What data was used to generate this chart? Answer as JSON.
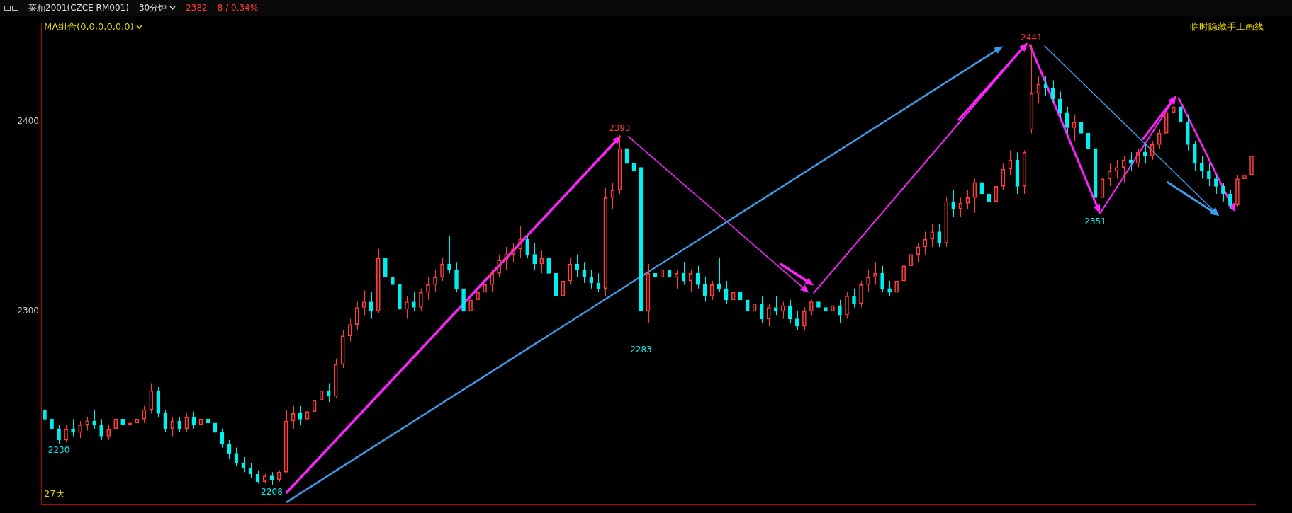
{
  "chart_data": {
    "type": "candlestick",
    "title": "菜粕2001(CZCE RM001)",
    "subtitle": "30分钟",
    "ohlc": [
      [
        2248,
        2252,
        2240,
        2243
      ],
      [
        2243,
        2246,
        2236,
        2238
      ],
      [
        2238,
        2240,
        2230,
        2232
      ],
      [
        2232,
        2240,
        2231,
        2238
      ],
      [
        2238,
        2243,
        2234,
        2236
      ],
      [
        2236,
        2242,
        2233,
        2240
      ],
      [
        2240,
        2244,
        2237,
        2242
      ],
      [
        2242,
        2248,
        2238,
        2240
      ],
      [
        2240,
        2243,
        2232,
        2234
      ],
      [
        2234,
        2240,
        2232,
        2238
      ],
      [
        2238,
        2244,
        2236,
        2243
      ],
      [
        2243,
        2245,
        2238,
        2240
      ],
      [
        2240,
        2244,
        2236,
        2241
      ],
      [
        2241,
        2246,
        2238,
        2243
      ],
      [
        2243,
        2250,
        2241,
        2248
      ],
      [
        2248,
        2262,
        2246,
        2258
      ],
      [
        2258,
        2260,
        2244,
        2246
      ],
      [
        2246,
        2248,
        2236,
        2238
      ],
      [
        2238,
        2244,
        2234,
        2242
      ],
      [
        2242,
        2244,
        2236,
        2238
      ],
      [
        2238,
        2246,
        2236,
        2244
      ],
      [
        2244,
        2247,
        2238,
        2240
      ],
      [
        2240,
        2245,
        2238,
        2243
      ],
      [
        2243,
        2244,
        2238,
        2241
      ],
      [
        2241,
        2244,
        2234,
        2236
      ],
      [
        2236,
        2238,
        2228,
        2230
      ],
      [
        2230,
        2232,
        2222,
        2225
      ],
      [
        2225,
        2228,
        2218,
        2220
      ],
      [
        2220,
        2223,
        2215,
        2217
      ],
      [
        2217,
        2220,
        2212,
        2214
      ],
      [
        2214,
        2216,
        2209,
        2210
      ],
      [
        2210,
        2214,
        2209,
        2213
      ],
      [
        2213,
        2215,
        2208,
        2211
      ],
      [
        2211,
        2216,
        2210,
        2215
      ],
      [
        2215,
        2248,
        2215,
        2242
      ],
      [
        2242,
        2250,
        2238,
        2246
      ],
      [
        2246,
        2250,
        2240,
        2243
      ],
      [
        2243,
        2249,
        2240,
        2247
      ],
      [
        2247,
        2255,
        2245,
        2253
      ],
      [
        2253,
        2262,
        2250,
        2258
      ],
      [
        2258,
        2262,
        2252,
        2255
      ],
      [
        2255,
        2275,
        2254,
        2272
      ],
      [
        2272,
        2290,
        2270,
        2287
      ],
      [
        2287,
        2296,
        2284,
        2293
      ],
      [
        2293,
        2305,
        2290,
        2302
      ],
      [
        2302,
        2311,
        2298,
        2305
      ],
      [
        2305,
        2310,
        2296,
        2300
      ],
      [
        2300,
        2333,
        2299,
        2328
      ],
      [
        2328,
        2330,
        2315,
        2318
      ],
      [
        2318,
        2322,
        2310,
        2314
      ],
      [
        2314,
        2316,
        2298,
        2301
      ],
      [
        2301,
        2308,
        2296,
        2305
      ],
      [
        2305,
        2310,
        2300,
        2302
      ],
      [
        2302,
        2312,
        2300,
        2310
      ],
      [
        2310,
        2318,
        2306,
        2314
      ],
      [
        2314,
        2322,
        2310,
        2318
      ],
      [
        2318,
        2328,
        2316,
        2325
      ],
      [
        2325,
        2340,
        2320,
        2322
      ],
      [
        2322,
        2326,
        2310,
        2312
      ],
      [
        2312,
        2316,
        2288,
        2300
      ],
      [
        2300,
        2308,
        2296,
        2306
      ],
      [
        2306,
        2312,
        2300,
        2310
      ],
      [
        2310,
        2316,
        2306,
        2314
      ],
      [
        2314,
        2322,
        2310,
        2320
      ],
      [
        2320,
        2330,
        2318,
        2327
      ],
      [
        2327,
        2334,
        2322,
        2330
      ],
      [
        2330,
        2336,
        2326,
        2333
      ],
      [
        2333,
        2345,
        2328,
        2338
      ],
      [
        2338,
        2340,
        2328,
        2330
      ],
      [
        2330,
        2336,
        2322,
        2325
      ],
      [
        2325,
        2332,
        2320,
        2328
      ],
      [
        2328,
        2330,
        2318,
        2320
      ],
      [
        2320,
        2324,
        2305,
        2308
      ],
      [
        2308,
        2318,
        2306,
        2316
      ],
      [
        2316,
        2328,
        2314,
        2325
      ],
      [
        2325,
        2330,
        2318,
        2322
      ],
      [
        2322,
        2326,
        2315,
        2318
      ],
      [
        2318,
        2322,
        2312,
        2315
      ],
      [
        2315,
        2320,
        2310,
        2312
      ],
      [
        2312,
        2365,
        2308,
        2360
      ],
      [
        2360,
        2368,
        2354,
        2364
      ],
      [
        2364,
        2393,
        2362,
        2386
      ],
      [
        2386,
        2390,
        2376,
        2378
      ],
      [
        2378,
        2384,
        2370,
        2374
      ],
      [
        2376,
        2382,
        2283,
        2300
      ],
      [
        2300,
        2325,
        2294,
        2320
      ],
      [
        2320,
        2326,
        2312,
        2318
      ],
      [
        2318,
        2324,
        2310,
        2322
      ],
      [
        2322,
        2330,
        2316,
        2318
      ],
      [
        2318,
        2322,
        2312,
        2320
      ],
      [
        2320,
        2326,
        2314,
        2316
      ],
      [
        2316,
        2322,
        2310,
        2320
      ],
      [
        2320,
        2324,
        2312,
        2314
      ],
      [
        2314,
        2318,
        2305,
        2308
      ],
      [
        2308,
        2316,
        2306,
        2314
      ],
      [
        2314,
        2328,
        2310,
        2312
      ],
      [
        2312,
        2316,
        2304,
        2306
      ],
      [
        2306,
        2312,
        2302,
        2310
      ],
      [
        2310,
        2314,
        2304,
        2306
      ],
      [
        2306,
        2310,
        2298,
        2300
      ],
      [
        2300,
        2306,
        2296,
        2304
      ],
      [
        2304,
        2308,
        2294,
        2296
      ],
      [
        2296,
        2304,
        2292,
        2302
      ],
      [
        2302,
        2308,
        2298,
        2300
      ],
      [
        2300,
        2305,
        2296,
        2303
      ],
      [
        2303,
        2306,
        2294,
        2296
      ],
      [
        2296,
        2300,
        2290,
        2292
      ],
      [
        2292,
        2302,
        2290,
        2300
      ],
      [
        2300,
        2306,
        2298,
        2305
      ],
      [
        2305,
        2308,
        2300,
        2302
      ],
      [
        2302,
        2306,
        2298,
        2300
      ],
      [
        2300,
        2305,
        2296,
        2303
      ],
      [
        2303,
        2306,
        2294,
        2298
      ],
      [
        2298,
        2310,
        2296,
        2308
      ],
      [
        2308,
        2312,
        2302,
        2304
      ],
      [
        2304,
        2316,
        2302,
        2314
      ],
      [
        2314,
        2322,
        2310,
        2318
      ],
      [
        2318,
        2326,
        2314,
        2320
      ],
      [
        2320,
        2324,
        2310,
        2312
      ],
      [
        2312,
        2316,
        2308,
        2310
      ],
      [
        2310,
        2318,
        2308,
        2316
      ],
      [
        2316,
        2326,
        2314,
        2324
      ],
      [
        2324,
        2332,
        2320,
        2330
      ],
      [
        2330,
        2336,
        2326,
        2334
      ],
      [
        2334,
        2342,
        2330,
        2338
      ],
      [
        2338,
        2346,
        2334,
        2342
      ],
      [
        2342,
        2346,
        2334,
        2336
      ],
      [
        2336,
        2360,
        2334,
        2358
      ],
      [
        2358,
        2364,
        2350,
        2354
      ],
      [
        2354,
        2360,
        2350,
        2357
      ],
      [
        2357,
        2364,
        2354,
        2360
      ],
      [
        2360,
        2370,
        2352,
        2368
      ],
      [
        2368,
        2372,
        2358,
        2362
      ],
      [
        2362,
        2366,
        2350,
        2358
      ],
      [
        2358,
        2368,
        2356,
        2366
      ],
      [
        2366,
        2378,
        2364,
        2375
      ],
      [
        2375,
        2385,
        2372,
        2380
      ],
      [
        2380,
        2384,
        2362,
        2366
      ],
      [
        2366,
        2385,
        2362,
        2384
      ],
      [
        2396,
        2441,
        2394,
        2415
      ],
      [
        2415,
        2424,
        2410,
        2420
      ],
      [
        2420,
        2424,
        2414,
        2418
      ],
      [
        2418,
        2422,
        2410,
        2412
      ],
      [
        2412,
        2416,
        2402,
        2405
      ],
      [
        2405,
        2408,
        2394,
        2397
      ],
      [
        2397,
        2404,
        2390,
        2400
      ],
      [
        2400,
        2405,
        2392,
        2394
      ],
      [
        2394,
        2398,
        2382,
        2386
      ],
      [
        2386,
        2388,
        2351,
        2360
      ],
      [
        2360,
        2372,
        2358,
        2370
      ],
      [
        2370,
        2378,
        2366,
        2374
      ],
      [
        2374,
        2380,
        2370,
        2376
      ],
      [
        2376,
        2382,
        2368,
        2380
      ],
      [
        2380,
        2384,
        2374,
        2378
      ],
      [
        2378,
        2386,
        2376,
        2384
      ],
      [
        2384,
        2388,
        2378,
        2382
      ],
      [
        2382,
        2390,
        2380,
        2388
      ],
      [
        2388,
        2396,
        2386,
        2394
      ],
      [
        2394,
        2408,
        2392,
        2405
      ],
      [
        2405,
        2413,
        2400,
        2408
      ],
      [
        2408,
        2410,
        2398,
        2400
      ],
      [
        2400,
        2404,
        2385,
        2388
      ],
      [
        2388,
        2390,
        2374,
        2378
      ],
      [
        2378,
        2382,
        2370,
        2374
      ],
      [
        2374,
        2378,
        2366,
        2370
      ],
      [
        2370,
        2372,
        2362,
        2366
      ],
      [
        2366,
        2368,
        2358,
        2362
      ],
      [
        2362,
        2364,
        2354,
        2356
      ],
      [
        2356,
        2372,
        2355,
        2370
      ],
      [
        2370,
        2374,
        2364,
        2372
      ],
      [
        2372,
        2392,
        2370,
        2382
      ]
    ],
    "categories": [
      null,
      null,
      null,
      null,
      null,
      null,
      null,
      null,
      null,
      null,
      null,
      null,
      null,
      null,
      null,
      null,
      null,
      null,
      null,
      null,
      null,
      null,
      null,
      null,
      null,
      null,
      null,
      null,
      null,
      null,
      null,
      null,
      null,
      null,
      null,
      null,
      null,
      null,
      null,
      null,
      null,
      null,
      null,
      null,
      null,
      null,
      null,
      null,
      null,
      null,
      null,
      null,
      null,
      null,
      null,
      null,
      null,
      null,
      null,
      null,
      null,
      null,
      null,
      null,
      null,
      null,
      null,
      null,
      null,
      null,
      null,
      null,
      null,
      null,
      null,
      null,
      null,
      null,
      null,
      null,
      null,
      null,
      null,
      null,
      null,
      null,
      null,
      null,
      null,
      null,
      null,
      null,
      null,
      null,
      null,
      null,
      null,
      null,
      null,
      null,
      null,
      null,
      null,
      null,
      null,
      null,
      null,
      null,
      null,
      null,
      null,
      null,
      null,
      null,
      null,
      null,
      null,
      null,
      null,
      null,
      null,
      null,
      null,
      null,
      null,
      null,
      null,
      null,
      null,
      null,
      null,
      null,
      null,
      null,
      null,
      null,
      null,
      null,
      null,
      null,
      null,
      null,
      null,
      null,
      null,
      null,
      null,
      null,
      null,
      null,
      null,
      null,
      null,
      null,
      null,
      null,
      null,
      null,
      null,
      null,
      null,
      null,
      null,
      null,
      null,
      null,
      null,
      null,
      null,
      null,
      null
    ],
    "ylim": [
      2198,
      2452
    ],
    "yticks": [
      2300,
      2400
    ],
    "grid": "y",
    "tick_labels": "y",
    "annotations": [
      "2382",
      "8 / 0.34%",
      "MA组合(0,0,0,0,0,0)",
      "临时隐藏手工画线",
      "27天",
      {
        "text": "2230",
        "y": 2230
      },
      {
        "text": "2208",
        "y": 2208
      },
      {
        "text": "2393",
        "y": 2393
      },
      {
        "text": "2283",
        "y": 2283
      },
      {
        "text": "2441",
        "y": 2441
      },
      {
        "text": "2351",
        "y": 2351
      }
    ]
  }
}
